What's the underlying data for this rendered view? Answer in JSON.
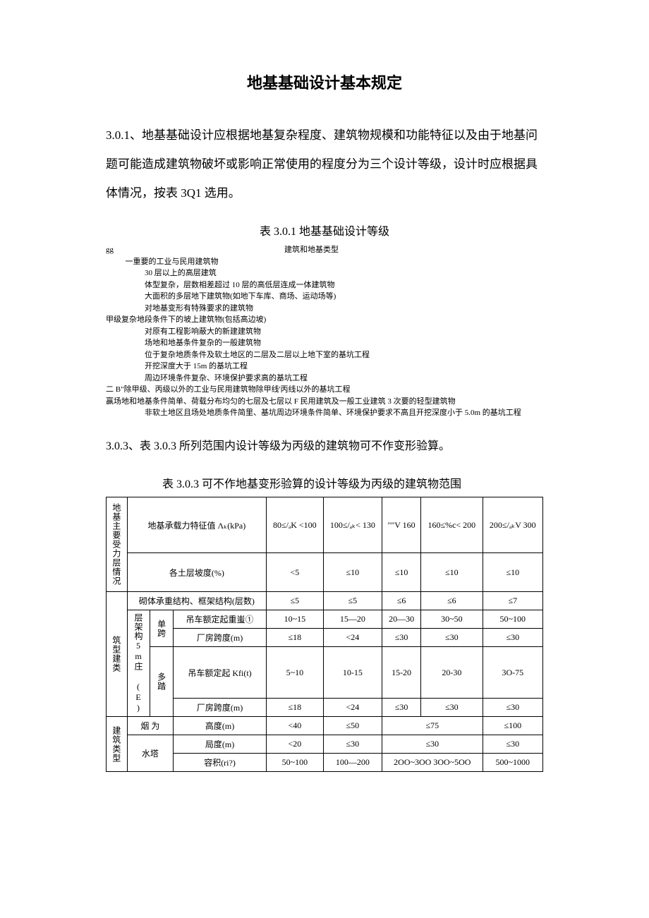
{
  "doc": {
    "title": "地基基础设计基本规定",
    "p1": "3.0.1、地基基础设计应根据地基复杂程度、建筑物规模和功能特征以及由于地基问题可能造成建筑物破坏或影响正常使用的程度分为三个设计等级，设计时应根据具体情况，按表 3Q1 选用。",
    "table1_caption": "表 3.0.1 地基基础设计等级",
    "t1": {
      "hdr_l": "gg",
      "hdr_r": "建筑和地基类型",
      "lines": [
        {
          "cls": "indent1",
          "t": "一重要的工业与民用建筑物"
        },
        {
          "cls": "indent2",
          "t": "30 层以上的高层建筑"
        },
        {
          "cls": "indent2",
          "t": "体型复杂，层数相差超过 10 层的高低层连成一体建筑物"
        },
        {
          "cls": "indent2",
          "t": "大面积的多层地下建筑物(如地下车库、商场、运动场等)"
        },
        {
          "cls": "indent2",
          "t": "对地基变形有特殊要求的建筑物"
        },
        {
          "cls": "",
          "t": "甲级复杂地段条件下的坡上建筑物(包括高边坡)"
        },
        {
          "cls": "indent2",
          "t": "对原有工程影响蔽大的新建建筑物"
        },
        {
          "cls": "indent2",
          "t": "场地和地基条件复杂的一般建筑物"
        },
        {
          "cls": "indent2",
          "t": "位于复杂地质条件及软土地区的二层及二层以上地下室的基坑工程"
        },
        {
          "cls": "indent2",
          "t": "开挖深度大于 15m 的基坑工程"
        },
        {
          "cls": "indent2",
          "t": "周边环境条件复杂、环境保护要求高的基坑工程"
        },
        {
          "cls": "",
          "t": "二 B\"除甲级、丙级以外的工业与民用建筑物除甲线'丙线以外的基坑工程"
        },
        {
          "cls": "",
          "t": "赢场地和地基条件简单、荷载分布均匀的七层及七层以 F 民用建筑及一般工业建筑 3 次要的轻型建筑物"
        },
        {
          "cls": "indent2",
          "t": "非软土地区且场处地质条件简里、基坑周边环境条件简单、环境保护要求不高且开挖深度小于 5.0m 的基坑工程"
        }
      ]
    },
    "p2": "3.0.3、表 3.0.3 所列范围内设计等级为丙级的建筑物可不作变形验算。",
    "table2_caption": "表 3.0.3 可不作地基变形验算的设计等级为丙级的建筑物范围",
    "t2": {
      "col_group_v": "地基主要受力层情况",
      "r1c1": "地基承载力特征值 Λₖ(kPa)",
      "r1v": [
        "80≤/ₐK <100",
        "100≤/ₐₖ< 130",
        "\"\"V 160",
        "160≤%c< 200",
        "200≤/ₐₖV 300"
      ],
      "r2c1": "各土层坡度(%)",
      "r2v": [
        "<5",
        "≤10",
        "≤10",
        "≤10",
        "≤10"
      ],
      "grp2_v": "筑型建类",
      "r3c1": "砌体承重结构、框架结构(层数)",
      "r3v": [
        "≤5",
        "≤5",
        "≤6",
        "≤6",
        "≤7"
      ],
      "frame_v": "层架构5m庄 (E)",
      "single_span": "单跨",
      "multi_span": "多踏",
      "crane_t": "吊车额定起重蚩①",
      "crane_kfit": "吊车额定起 Kfi(t)",
      "span_m": "厂房跨度(m)",
      "r4v": [
        "10~15",
        "15—20",
        "20—30",
        "30~50",
        "50~100"
      ],
      "r5v": [
        "≤18",
        "<24",
        "≤30",
        "≤30",
        "≤30"
      ],
      "r6v": [
        "5~10",
        "10-15",
        "15-20",
        "20-30",
        "3O-75"
      ],
      "r7v": [
        "≤18",
        "<24",
        "≤30",
        "≤30",
        "≤30"
      ],
      "grp3_v": "建筑类型",
      "chimney": "烟 为",
      "tower": "水塔",
      "height": "高度(m)",
      "ju": "局度(m)",
      "vol": "容积(ri?)",
      "r8v": [
        "<40",
        "≤50",
        "≤75",
        "≤100"
      ],
      "r9v": [
        "<20",
        "≤30",
        "≤30",
        "≤30"
      ],
      "r10v": [
        "50~100",
        "100—200",
        "2OO~3OO 3OO~5OO",
        "500~1000"
      ]
    }
  }
}
